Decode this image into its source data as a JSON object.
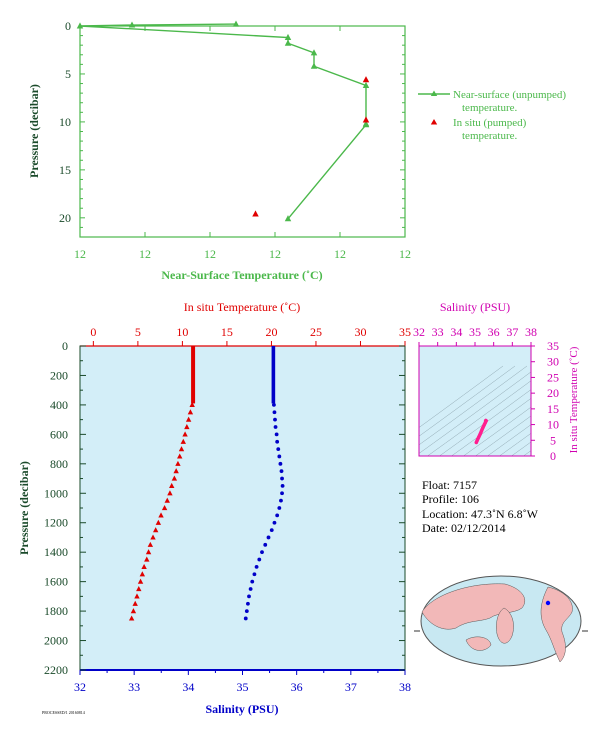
{
  "colors": {
    "green": "#4bb84b",
    "red": "#e00000",
    "blue": "#0000c8",
    "magenta": "#d000b0",
    "axis_dark": "#1a4a2a",
    "panel_bg": "#d3eef8",
    "land": "#f2b8b8",
    "ocean": "#c8e8f2"
  },
  "top_chart": {
    "xlabel": "Near-Surface Temperature (˚C)",
    "ylabel": "Pressure (decibar)",
    "x_tick_labels": [
      "12",
      "12",
      "12",
      "12",
      "12",
      "12"
    ],
    "y_tick_labels": [
      "0",
      "5",
      "10",
      "15",
      "20"
    ],
    "legend": {
      "unpumped_line1": "Near-surface (unpumped)",
      "unpumped_line2": "temperature.",
      "pumped_line1": "In situ (pumped)",
      "pumped_line2": "temperature."
    }
  },
  "main_chart": {
    "top_xlabel": "In situ Temperature (˚C)",
    "bottom_xlabel": "Salinity (PSU)",
    "ylabel": "Pressure (decibar)",
    "temp_tick_labels": [
      "0",
      "5",
      "10",
      "15",
      "20",
      "25",
      "30",
      "35"
    ],
    "sal_tick_labels": [
      "32",
      "33",
      "34",
      "35",
      "36",
      "37",
      "38"
    ],
    "p_tick_labels": [
      "0",
      "200",
      "400",
      "600",
      "800",
      "1000",
      "1200",
      "1400",
      "1600",
      "1800",
      "2000",
      "2200"
    ]
  },
  "ts_chart": {
    "title": "Salinity (PSU)",
    "ylabel": "In situ Temperature (˚C)",
    "sal_tick_labels": [
      "32",
      "33",
      "34",
      "35",
      "36",
      "37",
      "38"
    ],
    "temp_tick_labels": [
      "0",
      "5",
      "10",
      "15",
      "20",
      "25",
      "30",
      "35"
    ]
  },
  "info": {
    "float": "Float:  7157",
    "profile": "Profile:  106",
    "location": "Location:  47.3˚N   6.8˚W",
    "date": "Date:  02/12/2014"
  },
  "footer_code": "PROCESSED/1 20160814",
  "chart_data": [
    {
      "type": "line",
      "title": "",
      "xlabel": "Near-Surface Temperature (˚C)",
      "ylabel": "Pressure (decibar)",
      "xlim": [
        0,
        5
      ],
      "ylim": [
        22,
        0
      ],
      "series": [
        {
          "name": "Near-surface (unpumped) temperature.",
          "marker": "triangle",
          "color": "#4bb84b",
          "x": [
            2.4,
            0.8,
            0.0,
            3.2,
            3.2,
            3.6,
            3.6,
            4.4,
            4.4,
            4.4,
            3.2
          ],
          "y": [
            -0.2,
            -0.1,
            0.0,
            1.2,
            1.8,
            2.8,
            4.2,
            6.2,
            10.2,
            10.3,
            20.1
          ]
        },
        {
          "name": "In situ (pumped) temperature.",
          "marker": "triangle",
          "color": "#e00000",
          "x": [
            4.4,
            4.4,
            2.7
          ],
          "y": [
            5.6,
            9.8,
            19.6
          ]
        }
      ]
    },
    {
      "type": "scatter",
      "title": "",
      "ylabel": "Pressure (decibar)",
      "ylim": [
        2200,
        0
      ],
      "x_top": {
        "label": "In situ Temperature (˚C)",
        "range": [
          -1.5,
          35
        ]
      },
      "x_bottom": {
        "label": "Salinity (PSU)",
        "range": [
          32,
          38
        ]
      },
      "temperature": {
        "color": "#e00000",
        "marker": "triangle",
        "p": [
          0,
          50,
          100,
          150,
          200,
          250,
          300,
          350,
          400,
          450,
          500,
          550,
          600,
          650,
          700,
          750,
          800,
          850,
          900,
          950,
          1000,
          1050,
          1100,
          1150,
          1200,
          1250,
          1300,
          1350,
          1400,
          1450,
          1500,
          1550,
          1600,
          1650,
          1700,
          1750,
          1800,
          1850
        ],
        "t": [
          11.2,
          11.2,
          11.2,
          11.2,
          11.2,
          11.2,
          11.2,
          11.2,
          11.1,
          10.9,
          10.7,
          10.5,
          10.3,
          10.1,
          9.9,
          9.7,
          9.5,
          9.3,
          9.1,
          8.8,
          8.6,
          8.3,
          8.0,
          7.6,
          7.3,
          7.0,
          6.7,
          6.4,
          6.2,
          6.0,
          5.7,
          5.5,
          5.3,
          5.1,
          4.9,
          4.7,
          4.5,
          4.3
        ]
      },
      "salinity": {
        "color": "#0000c8",
        "marker": "dot",
        "p": [
          0,
          50,
          100,
          150,
          200,
          250,
          300,
          350,
          400,
          450,
          500,
          550,
          600,
          650,
          700,
          750,
          800,
          850,
          900,
          950,
          1000,
          1050,
          1100,
          1150,
          1200,
          1250,
          1300,
          1350,
          1400,
          1450,
          1500,
          1550,
          1600,
          1650,
          1700,
          1750,
          1800,
          1850
        ],
        "s": [
          35.57,
          35.57,
          35.57,
          35.57,
          35.57,
          35.57,
          35.57,
          35.57,
          35.58,
          35.59,
          35.6,
          35.61,
          35.63,
          35.64,
          35.66,
          35.68,
          35.7,
          35.72,
          35.73,
          35.74,
          35.73,
          35.71,
          35.68,
          35.64,
          35.59,
          35.54,
          35.48,
          35.42,
          35.36,
          35.31,
          35.26,
          35.22,
          35.18,
          35.15,
          35.12,
          35.1,
          35.08,
          35.06
        ]
      }
    },
    {
      "type": "scatter",
      "title": "Salinity (PSU)",
      "xlabel": "Salinity (PSU)",
      "ylabel": "In situ Temperature (˚C)",
      "xlim": [
        32,
        38
      ],
      "ylim": [
        0,
        35
      ],
      "color": "#ff1f8f",
      "s": [
        35.07,
        35.12,
        35.2,
        35.28,
        35.35,
        35.42,
        35.5,
        35.56,
        35.58,
        35.6,
        35.58,
        35.57
      ],
      "t": [
        4.3,
        5.0,
        6.0,
        7.0,
        8.0,
        9.0,
        10.0,
        10.7,
        11.1,
        11.2,
        11.3,
        11.2
      ]
    }
  ]
}
